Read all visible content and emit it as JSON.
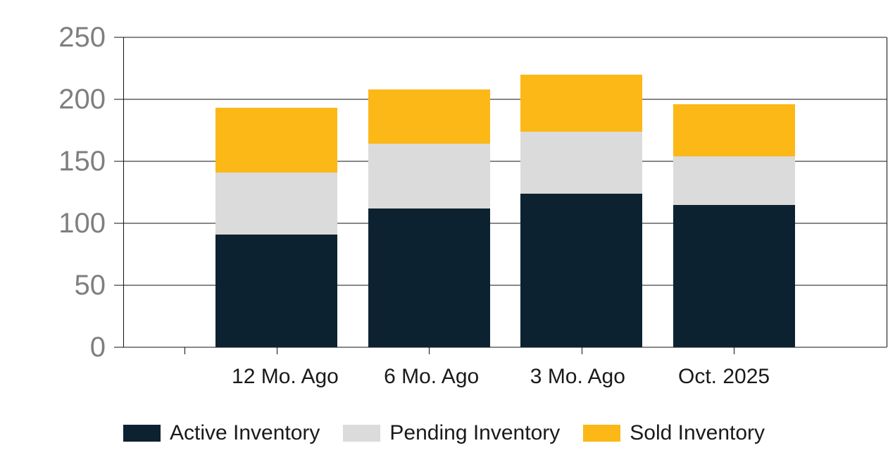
{
  "chart_data": {
    "type": "bar",
    "stacked": true,
    "categories": [
      "12 Mo. Ago",
      "6 Mo. Ago",
      "3 Mo. Ago",
      "Oct. 2025"
    ],
    "series": [
      {
        "name": "Active Inventory",
        "color": "#0d2231",
        "values": [
          91,
          112,
          124,
          115
        ]
      },
      {
        "name": "Pending Inventory",
        "color": "#dbdbdb",
        "values": [
          50,
          52,
          50,
          39
        ]
      },
      {
        "name": "Sold Inventory",
        "color": "#fbb817",
        "values": [
          52,
          44,
          46,
          42
        ]
      }
    ],
    "stack_totals": [
      193,
      208,
      220,
      196
    ],
    "xlabel": "",
    "ylabel": "",
    "y_axis": {
      "min": 0,
      "max": 250,
      "step": 50,
      "ticks": [
        250,
        200,
        150,
        100,
        50,
        0
      ]
    },
    "grid": true,
    "legend_position": "bottom"
  },
  "colors": {
    "background": "#ffffff",
    "axis_line": "#111111",
    "y_label_text": "#7f7f7f",
    "x_label_text": "#1a1a1a",
    "legend_text": "#1a1a1a",
    "active": "#0d2231",
    "pending": "#dbdbdb",
    "sold": "#fbb817"
  }
}
